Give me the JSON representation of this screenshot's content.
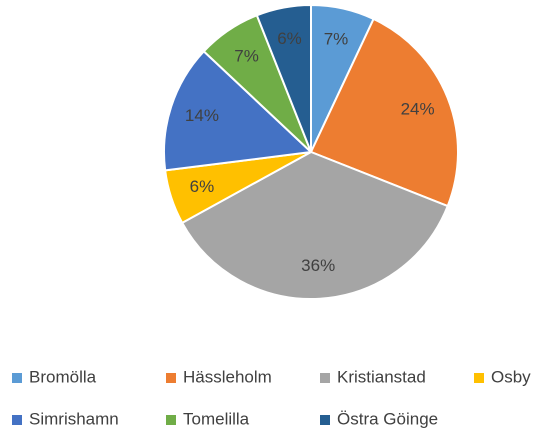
{
  "chart_data": {
    "type": "pie",
    "categories": [
      "Bromölla",
      "Hässleholm",
      "Kristianstad",
      "Osby",
      "Simrishamn",
      "Tomelilla",
      "Östra Göinge"
    ],
    "values": [
      7,
      24,
      36,
      6,
      14,
      7,
      6
    ],
    "value_labels": [
      "7%",
      "24%",
      "36%",
      "6%",
      "14%",
      "7%",
      "6%"
    ],
    "colors": [
      "#5b9bd5",
      "#ed7d31",
      "#a5a5a5",
      "#ffc000",
      "#4472c4",
      "#70ad47",
      "#255e91"
    ],
    "legend": "bottom"
  }
}
